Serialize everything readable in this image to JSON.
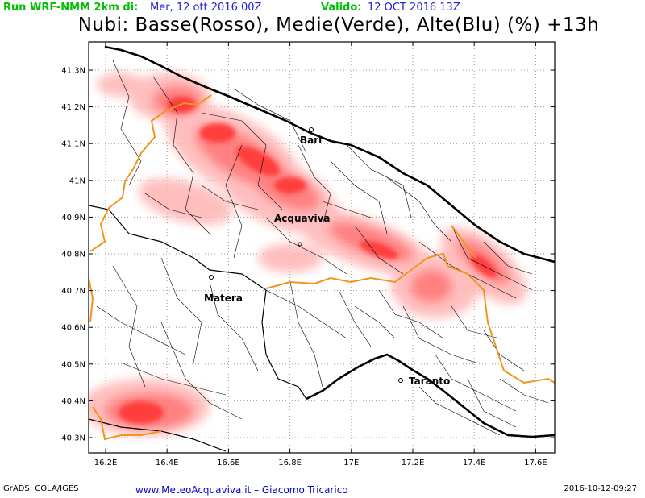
{
  "header": {
    "run_label": "Run WRF-NMM 2km di:",
    "run_value": "Mer, 12 ott 2016 00Z",
    "valid_label": "Valido:",
    "valid_value": "12 OCT 2016 13Z"
  },
  "title": "Nubi: Basse(Rosso), Medie(Verde), Alte(Blu) (%) +13h",
  "axes": {
    "lat_ticks": [
      "41.3N",
      "41.2N",
      "41.1N",
      "41N",
      "40.9N",
      "40.8N",
      "40.7N",
      "40.6N",
      "40.5N",
      "40.4N",
      "40.3N"
    ],
    "lon_ticks": [
      "16.2E",
      "16.4E",
      "16.6E",
      "16.8E",
      "17E",
      "17.2E",
      "17.4E",
      "17.6E"
    ]
  },
  "cities": [
    {
      "name": "Bari"
    },
    {
      "name": "Acquaviva"
    },
    {
      "name": "Matera"
    },
    {
      "name": "Taranto"
    }
  ],
  "colors": {
    "low_cloud": "#ff0000",
    "coast": "#000000",
    "region_border": "#f0961e",
    "grid": "#999999"
  },
  "footer": {
    "left": "GrADS: COLA/IGES",
    "center": "www.MeteoAcquaviva.it  –  Giacomo Tricarico",
    "timestamp": "2016-10-12-09:27"
  }
}
